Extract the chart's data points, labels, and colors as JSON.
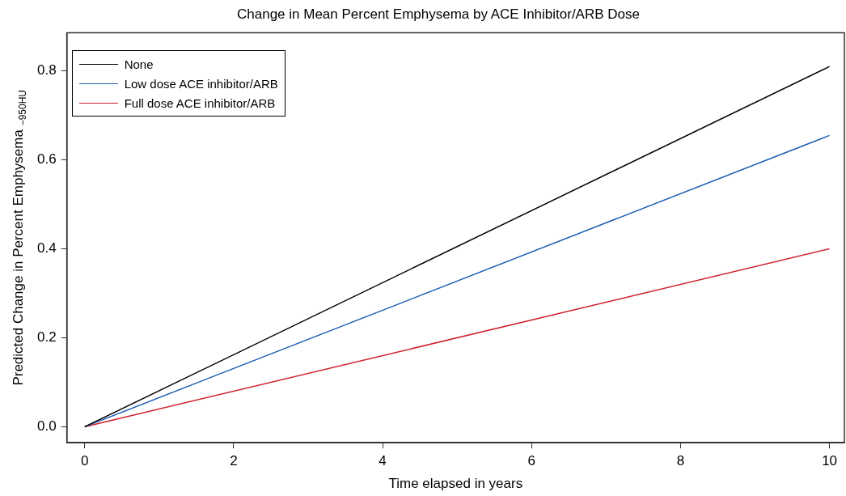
{
  "chart_data": {
    "type": "line",
    "title": "Change in Mean Percent Emphysema by ACE Inhibitor/ARB Dose",
    "xlabel": "Time elapsed in years",
    "ylabel": "Predicted Change in Percent Emphysema $_{−950HU}$",
    "x": [
      0,
      10
    ],
    "series": [
      {
        "name": "None",
        "color": "#000000",
        "values": [
          0,
          0.81
        ]
      },
      {
        "name": "Low dose ACE inhibitor/ARB",
        "color": "#1f5fb4",
        "values": [
          0,
          0.655
        ]
      },
      {
        "name": "Full dose ACE inhibitor/ARB",
        "color": "#d0202e",
        "values": [
          0,
          0.4
        ]
      }
    ],
    "xlim": [
      -0.24,
      10.2
    ],
    "xticks": [
      0,
      2,
      4,
      6,
      8,
      10
    ],
    "ylim": [
      -0.036,
      0.886
    ],
    "yticks": [
      {
        "value": 0,
        "label": "0.0"
      },
      {
        "value": 0.2,
        "label": "0.2"
      },
      {
        "value": 0.4,
        "label": "0.4"
      },
      {
        "value": 0.6,
        "label": "0.6"
      },
      {
        "value": 0.8,
        "label": "0.8"
      }
    ],
    "grid": false,
    "legend": "top left",
    "marker": "none",
    "line_style": "solid"
  }
}
